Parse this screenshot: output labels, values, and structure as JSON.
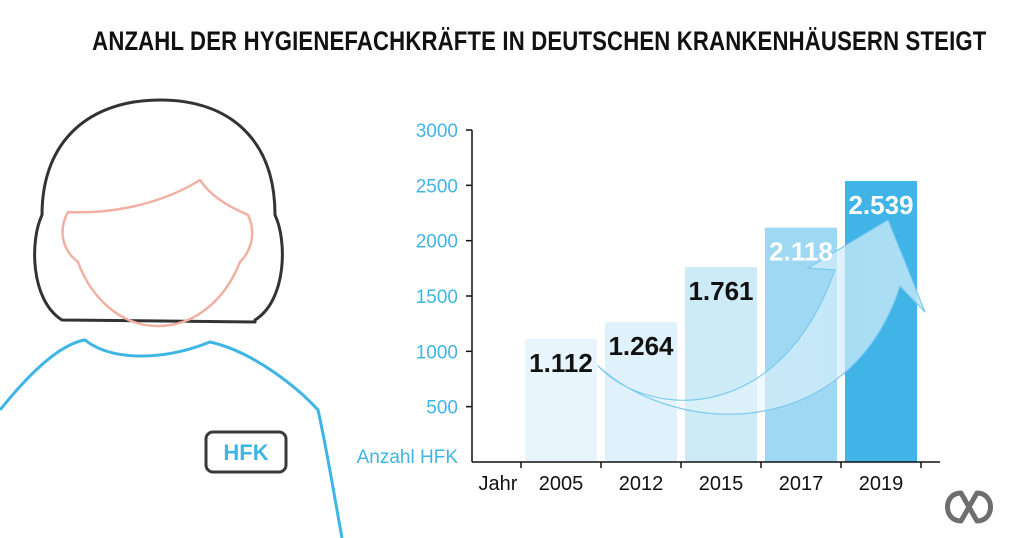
{
  "title": "ANZAHL DER HYGIENEFACHKRÄFTE IN DEUTSCHEN KRANKENHÄUSERN STEIGT",
  "illustration": {
    "badge_text": "HFK"
  },
  "colors": {
    "accent": "#3fb5e6",
    "text": "#111111",
    "bars": [
      "#e9f5fc",
      "#dff1fa",
      "#cdeaf7",
      "#9fd8f2",
      "#40b4e7"
    ],
    "label_colors": [
      "#111111",
      "#111111",
      "#111111",
      "#ffffff",
      "#ffffff"
    ]
  },
  "chart_data": {
    "type": "bar",
    "title": "ANZAHL DER HYGIENEFACHKRÄFTE IN DEUTSCHEN KRANKENHÄUSERN STEIGT",
    "xlabel": "Jahr",
    "ylabel": "Anzahl HFK",
    "categories": [
      "2005",
      "2012",
      "2015",
      "2017",
      "2019"
    ],
    "values": [
      1112,
      1264,
      1761,
      2118,
      2539
    ],
    "value_labels": [
      "1.112",
      "1.264",
      "1.761",
      "2.118",
      "2.539"
    ],
    "yticks": [
      500,
      1000,
      1500,
      2000,
      2500,
      3000
    ],
    "ylim": [
      0,
      3000
    ],
    "grid": false,
    "legend": "none",
    "annotation": "curved arrow indicating increase"
  }
}
